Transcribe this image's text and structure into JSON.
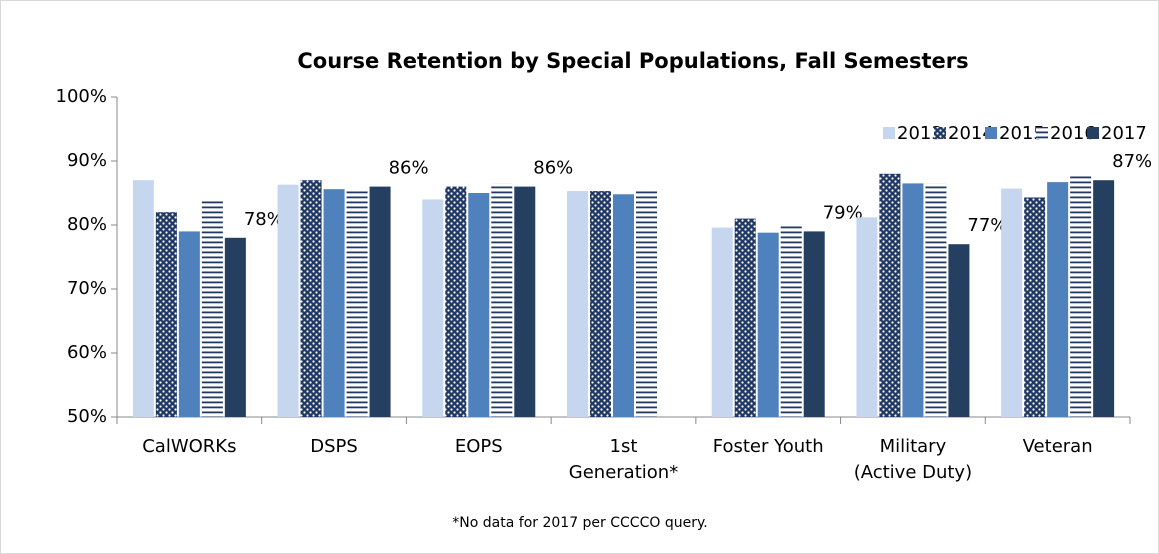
{
  "chart_data": {
    "type": "bar",
    "title": "Course Retention by Special Populations, Fall Semesters",
    "footnote": "*No data for 2017 per CCCCO query.",
    "categories": [
      "CalWORKs",
      "DSPS",
      "EOPS",
      "1st\nGeneration*",
      "Foster Youth",
      "Military\n(Active Duty)",
      "Veteran"
    ],
    "series": [
      {
        "name": "2013",
        "color": "#c6d6ee",
        "values": [
          87,
          86.3,
          84,
          85.3,
          79.6,
          81.2,
          85.7
        ]
      },
      {
        "name": "2014",
        "color": "#1f3864",
        "pattern": "dots",
        "values": [
          82,
          87,
          86,
          85.3,
          81,
          88,
          84.3
        ]
      },
      {
        "name": "2015",
        "color": "#4f81bd",
        "values": [
          79,
          85.6,
          85,
          84.8,
          78.8,
          86.5,
          86.7
        ]
      },
      {
        "name": "2016",
        "color": "#1f3864",
        "pattern": "lines",
        "values": [
          84,
          85.5,
          86.5,
          85.3,
          80,
          86.5,
          88
        ]
      },
      {
        "name": "2017",
        "color": "#243f60",
        "values": [
          78,
          86,
          86,
          null,
          79,
          77,
          87
        ],
        "value_labels": [
          "78%",
          "86%",
          "86%",
          null,
          "79%",
          "77%",
          "87%"
        ]
      }
    ],
    "ylim": [
      50,
      100
    ],
    "yticks": [
      {
        "value": 50,
        "label": "50%"
      },
      {
        "value": 60,
        "label": "60%"
      },
      {
        "value": 70,
        "label": "70%"
      },
      {
        "value": 80,
        "label": "80%"
      },
      {
        "value": 90,
        "label": "90%"
      },
      {
        "value": 100,
        "label": "100%"
      }
    ],
    "legend": "top-right"
  }
}
